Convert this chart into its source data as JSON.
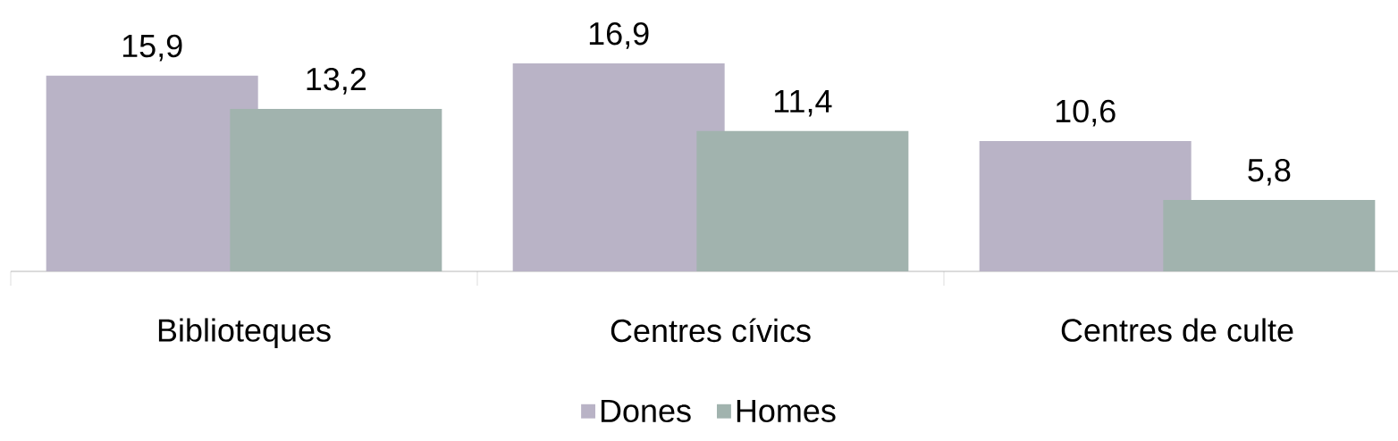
{
  "chart_data": {
    "type": "bar",
    "categories": [
      "Biblioteques",
      "Centres cívics",
      "Centres de culte"
    ],
    "series": [
      {
        "name": "Dones",
        "color": "#b9b3c6",
        "values": [
          15.9,
          16.9,
          10.6
        ],
        "value_labels": [
          "15,9",
          "16,9",
          "10,6"
        ]
      },
      {
        "name": "Homes",
        "color": "#a1b3ae",
        "values": [
          13.2,
          11.4,
          5.8
        ],
        "value_labels": [
          "13,2",
          "11,4",
          "5,8"
        ]
      }
    ],
    "legend": "bottom"
  }
}
